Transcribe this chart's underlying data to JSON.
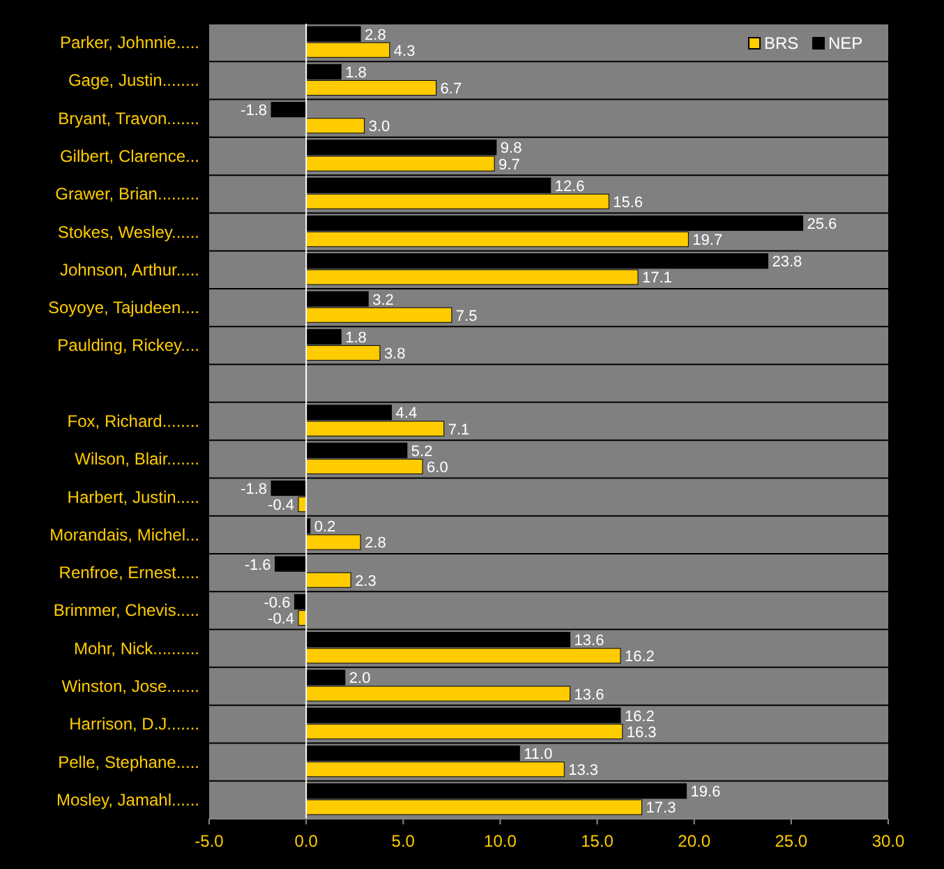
{
  "chart_data": {
    "type": "bar",
    "orientation": "horizontal",
    "legend": "top right",
    "categories": [
      "Parker, Johnnie.....",
      "Gage, Justin........",
      "Bryant, Travon.......",
      "Gilbert, Clarence...",
      "Grawer, Brian.........",
      "Stokes, Wesley......",
      "Johnson, Arthur.....",
      "Soyoye, Tajudeen....",
      "Paulding, Rickey....",
      null,
      "Fox, Richard........",
      "Wilson, Blair.......",
      "Harbert, Justin.....",
      "Morandais, Michel...",
      "Renfroe, Ernest.....",
      "Brimmer, Chevis.....",
      "Mohr, Nick..........",
      "Winston, Jose.......",
      "Harrison, D.J.......",
      "Pelle, Stephane.....",
      "Mosley, Jamahl......"
    ],
    "series": [
      {
        "name": "BRS",
        "color": "#ffcc00",
        "values": [
          4.3,
          6.7,
          3.0,
          9.7,
          15.6,
          19.7,
          17.1,
          7.5,
          3.8,
          null,
          7.1,
          6.0,
          -0.4,
          2.8,
          2.3,
          -0.4,
          16.2,
          13.6,
          16.3,
          13.3,
          17.3
        ],
        "value_labels": [
          "4.3",
          "6.7",
          "3.0",
          "9.7",
          "15.6",
          "19.7",
          "17.1",
          "7.5",
          "3.8",
          null,
          "7.1",
          "6.0",
          "-0.4",
          "2.8",
          "2.3",
          "-0.4",
          "16.2",
          "13.6",
          "16.3",
          "13.3",
          "17.3"
        ]
      },
      {
        "name": "NEP",
        "color": "#000000",
        "values": [
          2.8,
          1.8,
          -1.8,
          9.8,
          12.6,
          25.6,
          23.8,
          3.2,
          1.8,
          null,
          4.4,
          5.2,
          -1.8,
          0.2,
          -1.6,
          -0.6,
          13.6,
          2.0,
          16.2,
          11.0,
          19.6
        ],
        "value_labels": [
          "2.8",
          "1.8",
          "-1.8",
          "9.8",
          "12.6",
          "25.6",
          "23.8",
          "3.2",
          "1.8",
          null,
          "4.4",
          "5.2",
          "-1.8",
          "0.2",
          "-1.6",
          "-0.6",
          "13.6",
          "2.0",
          "16.2",
          "11.0",
          "19.6"
        ]
      }
    ],
    "xlim": [
      -5,
      30
    ],
    "xticks": [
      {
        "value": -5,
        "label": "-5.0"
      },
      {
        "value": 0,
        "label": "0.0"
      },
      {
        "value": 5,
        "label": "5.0"
      },
      {
        "value": 10,
        "label": "10.0"
      },
      {
        "value": 15,
        "label": "15.0"
      },
      {
        "value": 20,
        "label": "20.0"
      },
      {
        "value": 25,
        "label": "25.0"
      },
      {
        "value": 30,
        "label": "30.0"
      }
    ]
  }
}
